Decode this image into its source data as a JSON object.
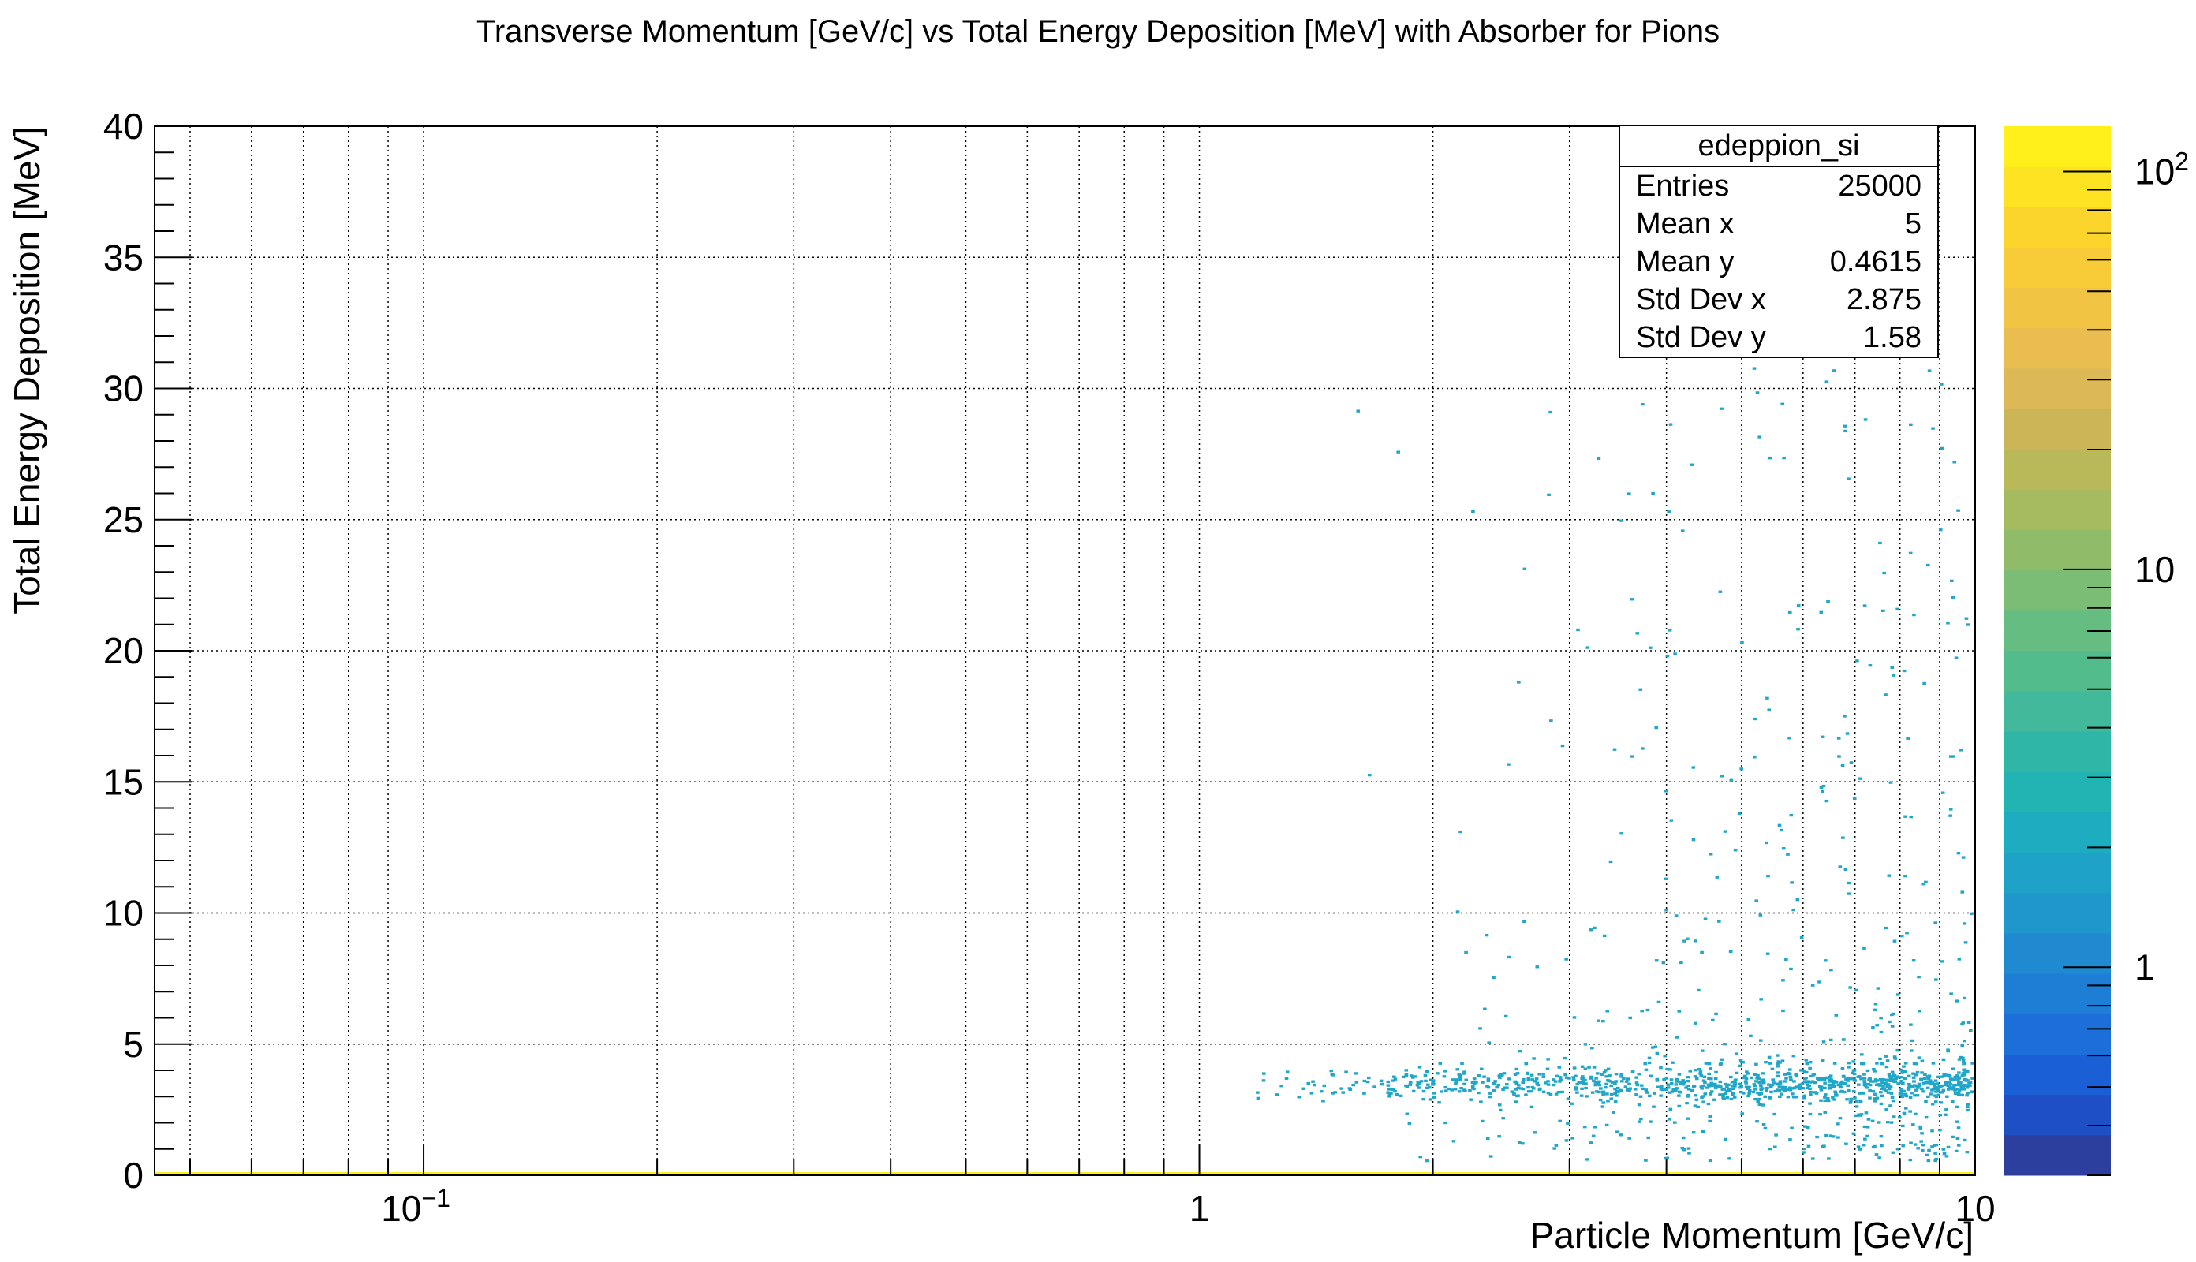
{
  "chart_data": {
    "type": "heatmap",
    "title": "Transverse Momentum [GeV/c] vs Total Energy Deposition [MeV] with Absorber for Pions",
    "xlabel": "Particle Momentum [GeV/c]",
    "ylabel": "Total Energy Deposition [MeV]",
    "x_scale": "log",
    "xlim": [
      0.045,
      10
    ],
    "ylim": [
      0,
      40
    ],
    "x_ticks": [
      {
        "value": 0.1,
        "base": "10",
        "exp": "−1"
      },
      {
        "value": 1,
        "label": "1"
      },
      {
        "value": 10,
        "label": "10"
      }
    ],
    "y_ticks": [
      "0",
      "5",
      "10",
      "15",
      "20",
      "25",
      "30",
      "35",
      "40"
    ],
    "grid": true,
    "colorbar": {
      "scale": "log",
      "range": [
        0.3,
        130
      ],
      "ticks": [
        {
          "value": 1,
          "label": "1"
        },
        {
          "value": 10,
          "label": "10"
        },
        {
          "value": 100,
          "base": "10",
          "exp": "2"
        }
      ],
      "palette": [
        "#2c3e9e",
        "#1f4fc4",
        "#1a5fd6",
        "#1c6ed9",
        "#1e7dd5",
        "#1f8ad0",
        "#1f97cc",
        "#1ea2c8",
        "#1dacc0",
        "#22b3b3",
        "#30b6a6",
        "#41b99a",
        "#53bc8d",
        "#66bd81",
        "#7bbd75",
        "#90bc6a",
        "#a6bb60",
        "#bab95a",
        "#ccb557",
        "#dcb856",
        "#e9bd4f",
        "#f2c444",
        "#f8cc39",
        "#fbd52c",
        "#fde321",
        "#fff01c"
      ]
    },
    "series": [
      {
        "description": "main band",
        "x_range": [
          1.1,
          10
        ],
        "y_center": 3.4,
        "y_spread": 0.6,
        "count_level": "high"
      },
      {
        "description": "scatter tail",
        "x_range": [
          1.2,
          10
        ],
        "y_range": [
          0,
          30
        ],
        "count_level": "low"
      },
      {
        "description": "zero-deposition row",
        "x_range": [
          0.045,
          10
        ],
        "y_value": 0,
        "count_level": "max"
      }
    ],
    "stats_box": {
      "name": "edeppion_si",
      "entries": [
        {
          "key": "Entries",
          "value": "25000"
        },
        {
          "key": "Mean x",
          "value": "5"
        },
        {
          "key": "Mean y",
          "value": "0.4615"
        },
        {
          "key": "Std Dev x",
          "value": "2.875"
        },
        {
          "key": "Std Dev y",
          "value": "1.58"
        }
      ]
    },
    "colors": {
      "band_cell": "#1fa6c9",
      "zero_row": "#fff01c",
      "grid": "#000000"
    }
  }
}
